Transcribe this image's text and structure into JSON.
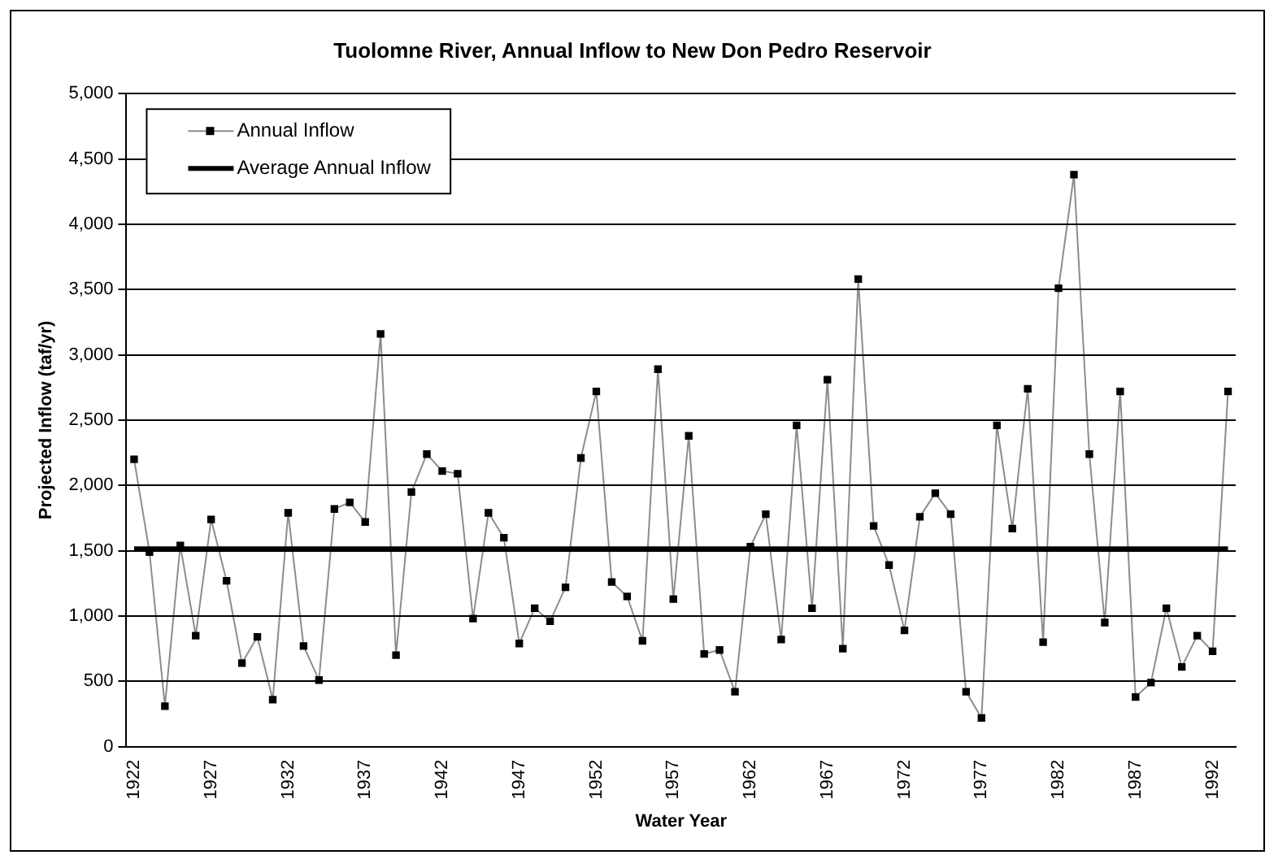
{
  "chart_data": {
    "type": "line",
    "title": "Tuolomne River, Annual Inflow to New Don Pedro Reservoir",
    "xlabel": "Water Year",
    "ylabel": "Projected Inflow (taf/yr)",
    "categories": [
      "1922",
      null,
      null,
      null,
      null,
      "1927",
      null,
      null,
      null,
      null,
      "1932",
      null,
      null,
      null,
      null,
      "1937",
      null,
      null,
      null,
      null,
      "1942",
      null,
      null,
      null,
      null,
      "1947",
      null,
      null,
      null,
      null,
      "1952",
      null,
      null,
      null,
      null,
      "1957",
      null,
      null,
      null,
      null,
      "1962",
      null,
      null,
      null,
      null,
      "1967",
      null,
      null,
      null,
      null,
      "1972",
      null,
      null,
      null,
      null,
      "1977",
      null,
      null,
      null,
      null,
      "1982",
      null,
      null,
      null,
      null,
      "1987",
      null,
      null,
      null,
      null,
      "1992",
      null
    ],
    "series": [
      {
        "name": "Annual Inflow",
        "color": "#000000",
        "values": [
          2200,
          1490,
          310,
          1540,
          850,
          1740,
          1270,
          640,
          840,
          360,
          1790,
          770,
          510,
          1820,
          1870,
          1720,
          3160,
          700,
          1950,
          2240,
          2110,
          2090,
          980,
          1790,
          1600,
          790,
          1060,
          960,
          1220,
          2210,
          2720,
          1260,
          1150,
          810,
          2890,
          1130,
          2380,
          710,
          740,
          420,
          1530,
          1780,
          820,
          2460,
          1060,
          2810,
          750,
          3580,
          1690,
          1390,
          890,
          1760,
          1940,
          1780,
          420,
          220,
          2460,
          1670,
          2740,
          800,
          3510,
          4380,
          2240,
          950,
          2720,
          380,
          490,
          1060,
          610,
          850,
          730,
          2720
        ]
      }
    ],
    "ref_lines": [
      {
        "axis": "y",
        "value": 1515,
        "label": "Average Annual Inflow",
        "color": "#000000"
      }
    ],
    "ylim": [
      0,
      5000
    ],
    "yticks": [
      {
        "value": 0,
        "label": "0"
      },
      {
        "value": 500,
        "label": "500"
      },
      {
        "value": 1000,
        "label": "1,000"
      },
      {
        "value": 1500,
        "label": "1,500"
      },
      {
        "value": 2000,
        "label": "2,000"
      },
      {
        "value": 2500,
        "label": "2,500"
      },
      {
        "value": 3000,
        "label": "3,000"
      },
      {
        "value": 3500,
        "label": "3,500"
      },
      {
        "value": 4000,
        "label": "4,000"
      },
      {
        "value": 4500,
        "label": "4,500"
      },
      {
        "value": 5000,
        "label": "5,000"
      }
    ],
    "grid": "y",
    "legend": "top left",
    "marker": "square",
    "line_style": "solid"
  }
}
